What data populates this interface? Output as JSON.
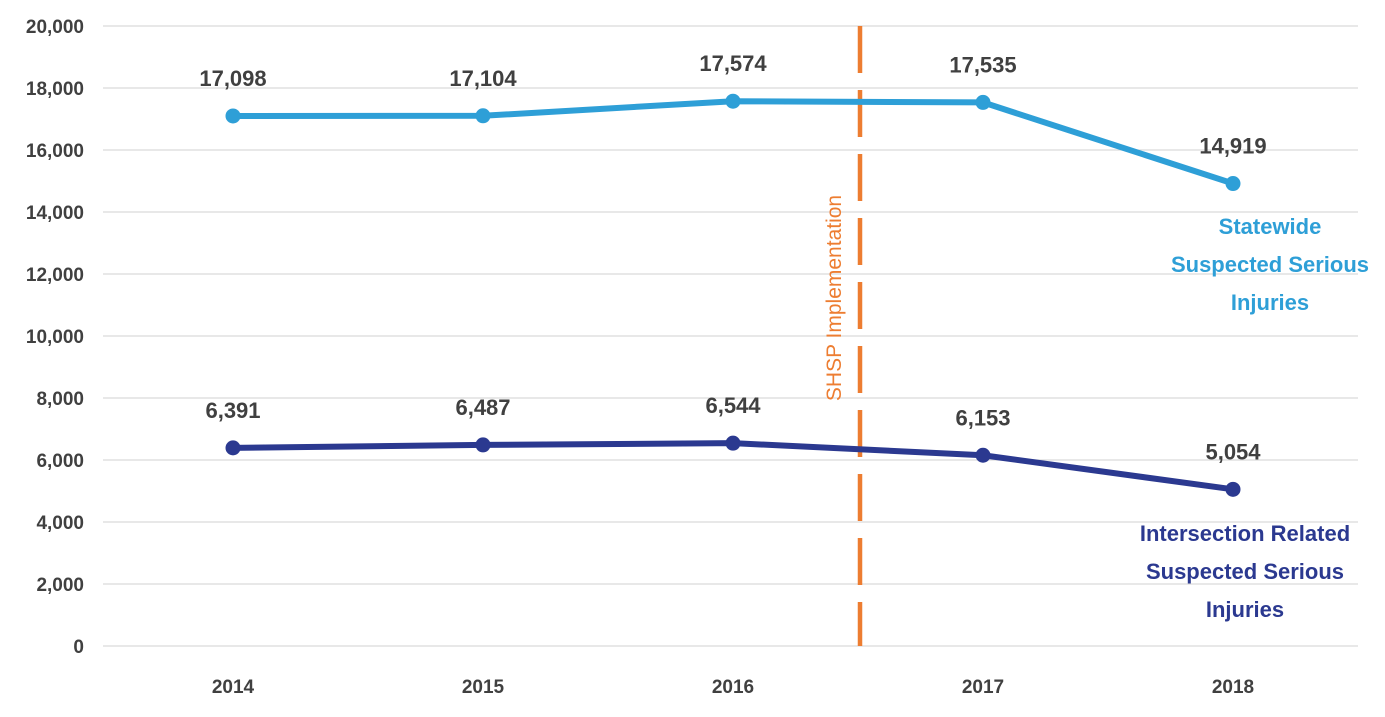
{
  "chart_data": {
    "type": "line",
    "title": "",
    "xlabel": "",
    "ylabel": "",
    "categories": [
      "2014",
      "2015",
      "2016",
      "2017",
      "2018"
    ],
    "ylim": [
      0,
      20000
    ],
    "yticks": [
      0,
      2000,
      4000,
      6000,
      8000,
      10000,
      12000,
      14000,
      16000,
      18000,
      20000
    ],
    "ytick_labels": [
      "0",
      "2,000",
      "4,000",
      "6,000",
      "8,000",
      "10,000",
      "12,000",
      "14,000",
      "16,000",
      "18,000",
      "20,000"
    ],
    "grid": true,
    "legend": "none (series labelled inline at right)",
    "series": [
      {
        "name": "Statewide Suspected Serious Injuries",
        "label_lines": [
          "Statewide",
          "Suspected Serious",
          "Injuries"
        ],
        "color": "#2E9FD7",
        "values": [
          17098,
          17104,
          17574,
          17535,
          14919
        ],
        "data_labels": [
          "17,098",
          "17,104",
          "17,574",
          "17,535",
          "14,919"
        ]
      },
      {
        "name": "Intersection Related Suspected Serious Injuries",
        "label_lines": [
          "Intersection Related",
          "Suspected Serious",
          "Injuries"
        ],
        "color": "#2B3990",
        "values": [
          6391,
          6487,
          6544,
          6153,
          5054
        ],
        "data_labels": [
          "6,391",
          "6,487",
          "6,544",
          "6,153",
          "5,054"
        ]
      }
    ],
    "annotations": [
      {
        "text": "SHSP Implementation",
        "type": "vertical-dashed-line",
        "position_between": [
          "2016",
          "2017"
        ],
        "color": "#ED7D31"
      }
    ]
  }
}
